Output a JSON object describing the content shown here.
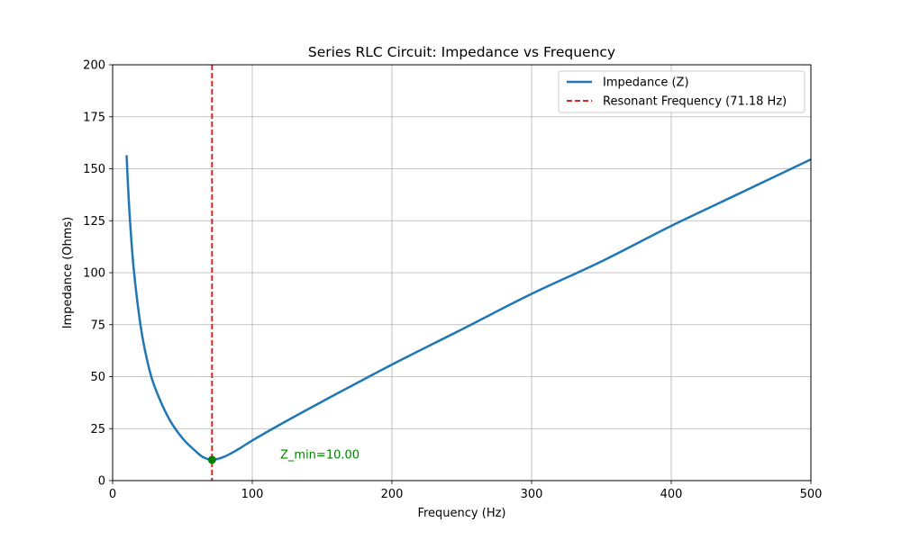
{
  "chart_data": {
    "type": "line",
    "title": "Series RLC Circuit: Impedance vs Frequency",
    "xlabel": "Frequency (Hz)",
    "ylabel": "Impedance (Ohms)",
    "xlim": [
      0,
      500
    ],
    "ylim": [
      0,
      200
    ],
    "xticks": [
      0,
      100,
      200,
      300,
      400,
      500
    ],
    "yticks": [
      0,
      25,
      50,
      75,
      100,
      125,
      150,
      175,
      200
    ],
    "grid": true,
    "legend_position": "top-right",
    "series": [
      {
        "name": "Impedance (Z)",
        "color": "#1f77b4",
        "style": "solid",
        "x": [
          10,
          12,
          15,
          20,
          25,
          30,
          40,
          50,
          60,
          65,
          71.18,
          80,
          90,
          100,
          120,
          150,
          200,
          250,
          300,
          350,
          400,
          450,
          500
        ],
        "y": [
          156.5,
          129.8,
          102.6,
          74.6,
          57.0,
          45.3,
          30.2,
          20.4,
          13.8,
          11.2,
          10.0,
          11.5,
          15.1,
          19.3,
          27.0,
          38.0,
          55.8,
          72.7,
          89.8,
          105.4,
          122.5,
          138.5,
          154.5
        ]
      },
      {
        "name": "Resonant Frequency (71.18 Hz)",
        "color": "#d62728",
        "style": "dashed",
        "vline_x": 71.18
      }
    ],
    "marker": {
      "x": 71.18,
      "y": 10.0,
      "color": "#008000"
    },
    "annotation": {
      "text": "Z_min=10.00",
      "x": 120,
      "y": 12.5,
      "color": "#008000"
    }
  }
}
